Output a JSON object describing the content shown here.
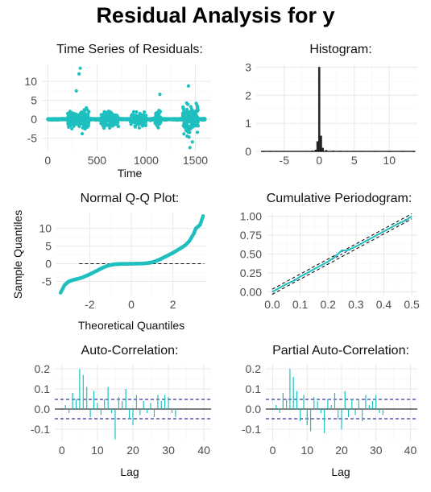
{
  "page": {
    "title": "Residual Analysis for  y"
  },
  "colors": {
    "series": "#1fbfbf",
    "grid_major": "#e8e8e8",
    "grid_minor": "#f4f4f4",
    "axis_text": "#4d4d4d",
    "bound_line": "#00008b",
    "ref_line": "#000000"
  },
  "chart_data": [
    {
      "type": "scatter",
      "title": "Time Series of Residuals:",
      "xlabel": "Time",
      "ylabel": "",
      "xlim": [
        -60,
        1660
      ],
      "ylim": [
        -8.5,
        14.5
      ],
      "xticks": [
        0,
        500,
        1000,
        1500
      ],
      "yticks": [
        -5,
        0,
        5,
        10
      ],
      "n_points": 1600,
      "summary": "Residuals mostly near 0 with bursts of high volatility around t≈200-400, 550-700, 850-1000, 1100-1150 and 1380-1520; maximum ≈13.5 near t=330, minimum ≈ -7.5 near t=1450."
    },
    {
      "type": "bar",
      "title": "Histogram:",
      "xlabel": "",
      "ylabel": "",
      "xlim": [
        -9,
        14
      ],
      "ylim": [
        0,
        3.1
      ],
      "xticks": [
        -5,
        0,
        5,
        10
      ],
      "yticks": [
        0,
        1,
        2,
        3
      ],
      "bins": [
        {
          "x": -8.0,
          "density": 0.004
        },
        {
          "x": -7.0,
          "density": 0.004
        },
        {
          "x": -6.0,
          "density": 0.006
        },
        {
          "x": -5.0,
          "density": 0.008
        },
        {
          "x": -4.0,
          "density": 0.01
        },
        {
          "x": -3.0,
          "density": 0.01
        },
        {
          "x": -2.0,
          "density": 0.012
        },
        {
          "x": -1.0,
          "density": 0.02
        },
        {
          "x": -0.5,
          "density": 0.05
        },
        {
          "x": -0.25,
          "density": 0.35
        },
        {
          "x": 0.0,
          "density": 3.0
        },
        {
          "x": 0.25,
          "density": 0.55
        },
        {
          "x": 0.5,
          "density": 0.12
        },
        {
          "x": 1.0,
          "density": 0.04
        },
        {
          "x": 2.0,
          "density": 0.02
        },
        {
          "x": 3.0,
          "density": 0.015
        },
        {
          "x": 4.0,
          "density": 0.012
        },
        {
          "x": 5.0,
          "density": 0.008
        },
        {
          "x": 6.0,
          "density": 0.006
        },
        {
          "x": 8.0,
          "density": 0.004
        },
        {
          "x": 10.0,
          "density": 0.003
        },
        {
          "x": 12.0,
          "density": 0.003
        },
        {
          "x": 13.5,
          "density": 0.002
        }
      ]
    },
    {
      "type": "scatter",
      "title": "Normal Q-Q Plot:",
      "xlabel": "Theoretical Quantiles",
      "ylabel": "Sample Quantiles",
      "xlim": [
        -3.6,
        3.6
      ],
      "ylim": [
        -9,
        14.5
      ],
      "xticks": [
        -2,
        0,
        2
      ],
      "yticks": [
        -5,
        0,
        5,
        10
      ],
      "reference_line": [
        [
          -2.5,
          0
        ],
        [
          3.5,
          0
        ]
      ],
      "points": [
        [
          -3.4,
          -8.2
        ],
        [
          -3.2,
          -6.0
        ],
        [
          -3.0,
          -5.0
        ],
        [
          -2.8,
          -4.6
        ],
        [
          -2.6,
          -4.3
        ],
        [
          -2.4,
          -4.0
        ],
        [
          -2.2,
          -3.5
        ],
        [
          -2.0,
          -3.0
        ],
        [
          -1.8,
          -2.4
        ],
        [
          -1.6,
          -1.8
        ],
        [
          -1.4,
          -1.2
        ],
        [
          -1.2,
          -0.7
        ],
        [
          -1.0,
          -0.35
        ],
        [
          -0.8,
          -0.15
        ],
        [
          -0.5,
          -0.05
        ],
        [
          0.0,
          0.0
        ],
        [
          0.5,
          0.05
        ],
        [
          0.8,
          0.2
        ],
        [
          1.0,
          0.4
        ],
        [
          1.2,
          0.8
        ],
        [
          1.4,
          1.3
        ],
        [
          1.6,
          1.9
        ],
        [
          1.8,
          2.5
        ],
        [
          2.0,
          3.1
        ],
        [
          2.2,
          3.8
        ],
        [
          2.4,
          4.5
        ],
        [
          2.6,
          5.3
        ],
        [
          2.8,
          6.5
        ],
        [
          3.0,
          8.5
        ],
        [
          3.1,
          10.0
        ],
        [
          3.3,
          11.0
        ],
        [
          3.45,
          13.5
        ]
      ]
    },
    {
      "type": "line",
      "title": "Cumulative Periodogram:",
      "xlabel": "",
      "ylabel": "",
      "xlim": [
        -0.02,
        0.52
      ],
      "ylim": [
        -0.05,
        1.05
      ],
      "xticks": [
        0.0,
        0.1,
        0.2,
        0.3,
        0.4,
        0.5
      ],
      "xtick_labels": [
        "0.0",
        "0.1",
        "0.2",
        "0.3",
        "0.4",
        "0.5"
      ],
      "yticks": [
        0.0,
        0.25,
        0.5,
        0.75,
        1.0
      ],
      "ytick_labels": [
        "0.00",
        "0.25",
        "0.50",
        "0.75",
        "1.00"
      ],
      "bound_offset": 0.034,
      "series": [
        {
          "x": [
            0.0,
            0.02,
            0.05,
            0.08,
            0.1,
            0.12,
            0.15,
            0.18,
            0.2,
            0.22,
            0.25,
            0.27,
            0.3,
            0.33,
            0.35,
            0.38,
            0.4,
            0.42,
            0.45,
            0.48,
            0.5
          ],
          "values": [
            0.0,
            0.04,
            0.1,
            0.15,
            0.2,
            0.24,
            0.3,
            0.36,
            0.4,
            0.45,
            0.55,
            0.55,
            0.6,
            0.66,
            0.7,
            0.76,
            0.8,
            0.84,
            0.9,
            0.95,
            1.0
          ]
        }
      ]
    },
    {
      "type": "bar",
      "title": "Auto-Correlation:",
      "xlabel": "Lag",
      "ylabel": "",
      "xlim": [
        -2,
        42
      ],
      "ylim": [
        -0.16,
        0.22
      ],
      "xticks": [
        0,
        10,
        20,
        30,
        40
      ],
      "yticks": [
        -0.1,
        0.0,
        0.1,
        0.2
      ],
      "ytick_labels": [
        "-0.1",
        "0.0",
        "0.1",
        "0.2"
      ],
      "conf_bound": 0.048,
      "lags": [
        1,
        2,
        3,
        4,
        5,
        6,
        7,
        8,
        9,
        10,
        11,
        12,
        13,
        14,
        15,
        16,
        17,
        18,
        19,
        20,
        21,
        22,
        23,
        24,
        25,
        26,
        27,
        28,
        29,
        30,
        31,
        32,
        33,
        34,
        35,
        36,
        37,
        38,
        39,
        40
      ],
      "values": [
        0.02,
        -0.02,
        0.08,
        0.05,
        0.2,
        0.17,
        0.11,
        -0.04,
        0.09,
        0.03,
        -0.03,
        0.05,
        0.11,
        -0.02,
        -0.15,
        0.06,
        0.04,
        0.1,
        -0.05,
        -0.08,
        0.07,
        -0.03,
        0.04,
        -0.02,
        0.03,
        -0.04,
        0.07,
        0.04,
        0.07,
        0.06,
        -0.02,
        -0.04,
        0.0,
        0.0,
        0.0,
        0.0,
        0.0,
        0.0,
        0.0,
        0.0
      ]
    },
    {
      "type": "bar",
      "title": "Partial Auto-Correlation:",
      "xlabel": "Lag",
      "ylabel": "",
      "xlim": [
        -2,
        42
      ],
      "ylim": [
        -0.16,
        0.22
      ],
      "xticks": [
        0,
        10,
        20,
        30,
        40
      ],
      "yticks": [
        -0.1,
        0.0,
        0.1,
        0.2
      ],
      "ytick_labels": [
        "-0.1",
        "0.0",
        "0.1",
        "0.2"
      ],
      "conf_bound": 0.048,
      "lags": [
        1,
        2,
        3,
        4,
        5,
        6,
        7,
        8,
        9,
        10,
        11,
        12,
        13,
        14,
        15,
        16,
        17,
        18,
        19,
        20,
        21,
        22,
        23,
        24,
        25,
        26,
        27,
        28,
        29,
        30,
        31,
        32,
        33,
        34,
        35,
        36,
        37,
        38,
        39,
        40
      ],
      "values": [
        0.02,
        -0.02,
        0.08,
        0.05,
        0.2,
        0.16,
        0.09,
        -0.06,
        0.07,
        -0.08,
        -0.11,
        0.06,
        0.04,
        -0.02,
        -0.12,
        0.05,
        0.02,
        0.08,
        -0.05,
        -0.1,
        0.09,
        -0.04,
        0.05,
        -0.03,
        0.05,
        -0.06,
        0.07,
        0.02,
        0.04,
        0.07,
        -0.02,
        -0.03,
        0.0,
        0.0,
        0.0,
        0.0,
        0.0,
        0.0,
        0.0,
        0.0
      ]
    }
  ]
}
